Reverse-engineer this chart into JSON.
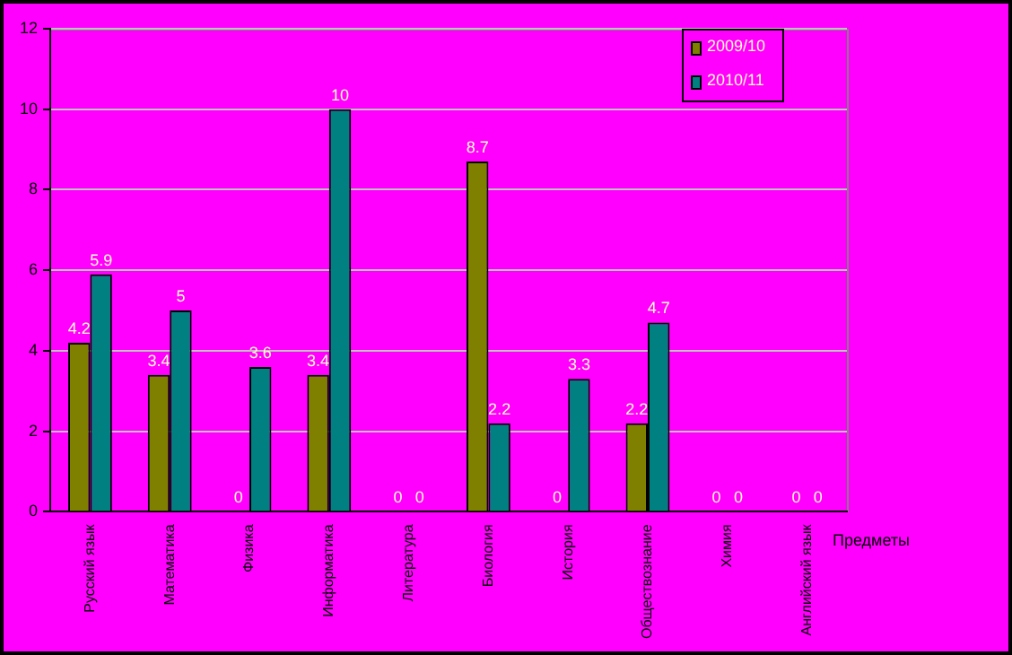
{
  "chart_data": {
    "type": "bar",
    "xlabel": "Предметы",
    "categories": [
      "Русский язык",
      "Математика",
      "Физика",
      "Информатика",
      "Литература",
      "Биология",
      "История",
      "Обществознание",
      "Химия",
      "Английский язык"
    ],
    "series": [
      {
        "name": "2009/10",
        "color": "#808000",
        "values": [
          4.2,
          3.4,
          0,
          3.4,
          0,
          8.7,
          0,
          2.2,
          0,
          0
        ]
      },
      {
        "name": "2010/11",
        "color": "#008080",
        "values": [
          5.9,
          5,
          3.6,
          10,
          0,
          2.2,
          3.3,
          4.7,
          0,
          0
        ]
      }
    ],
    "ylim": [
      0,
      12
    ],
    "yticks": [
      0,
      2,
      4,
      6,
      8,
      10,
      12
    ],
    "grid": "y",
    "legend": "top right",
    "data_labels": true
  }
}
